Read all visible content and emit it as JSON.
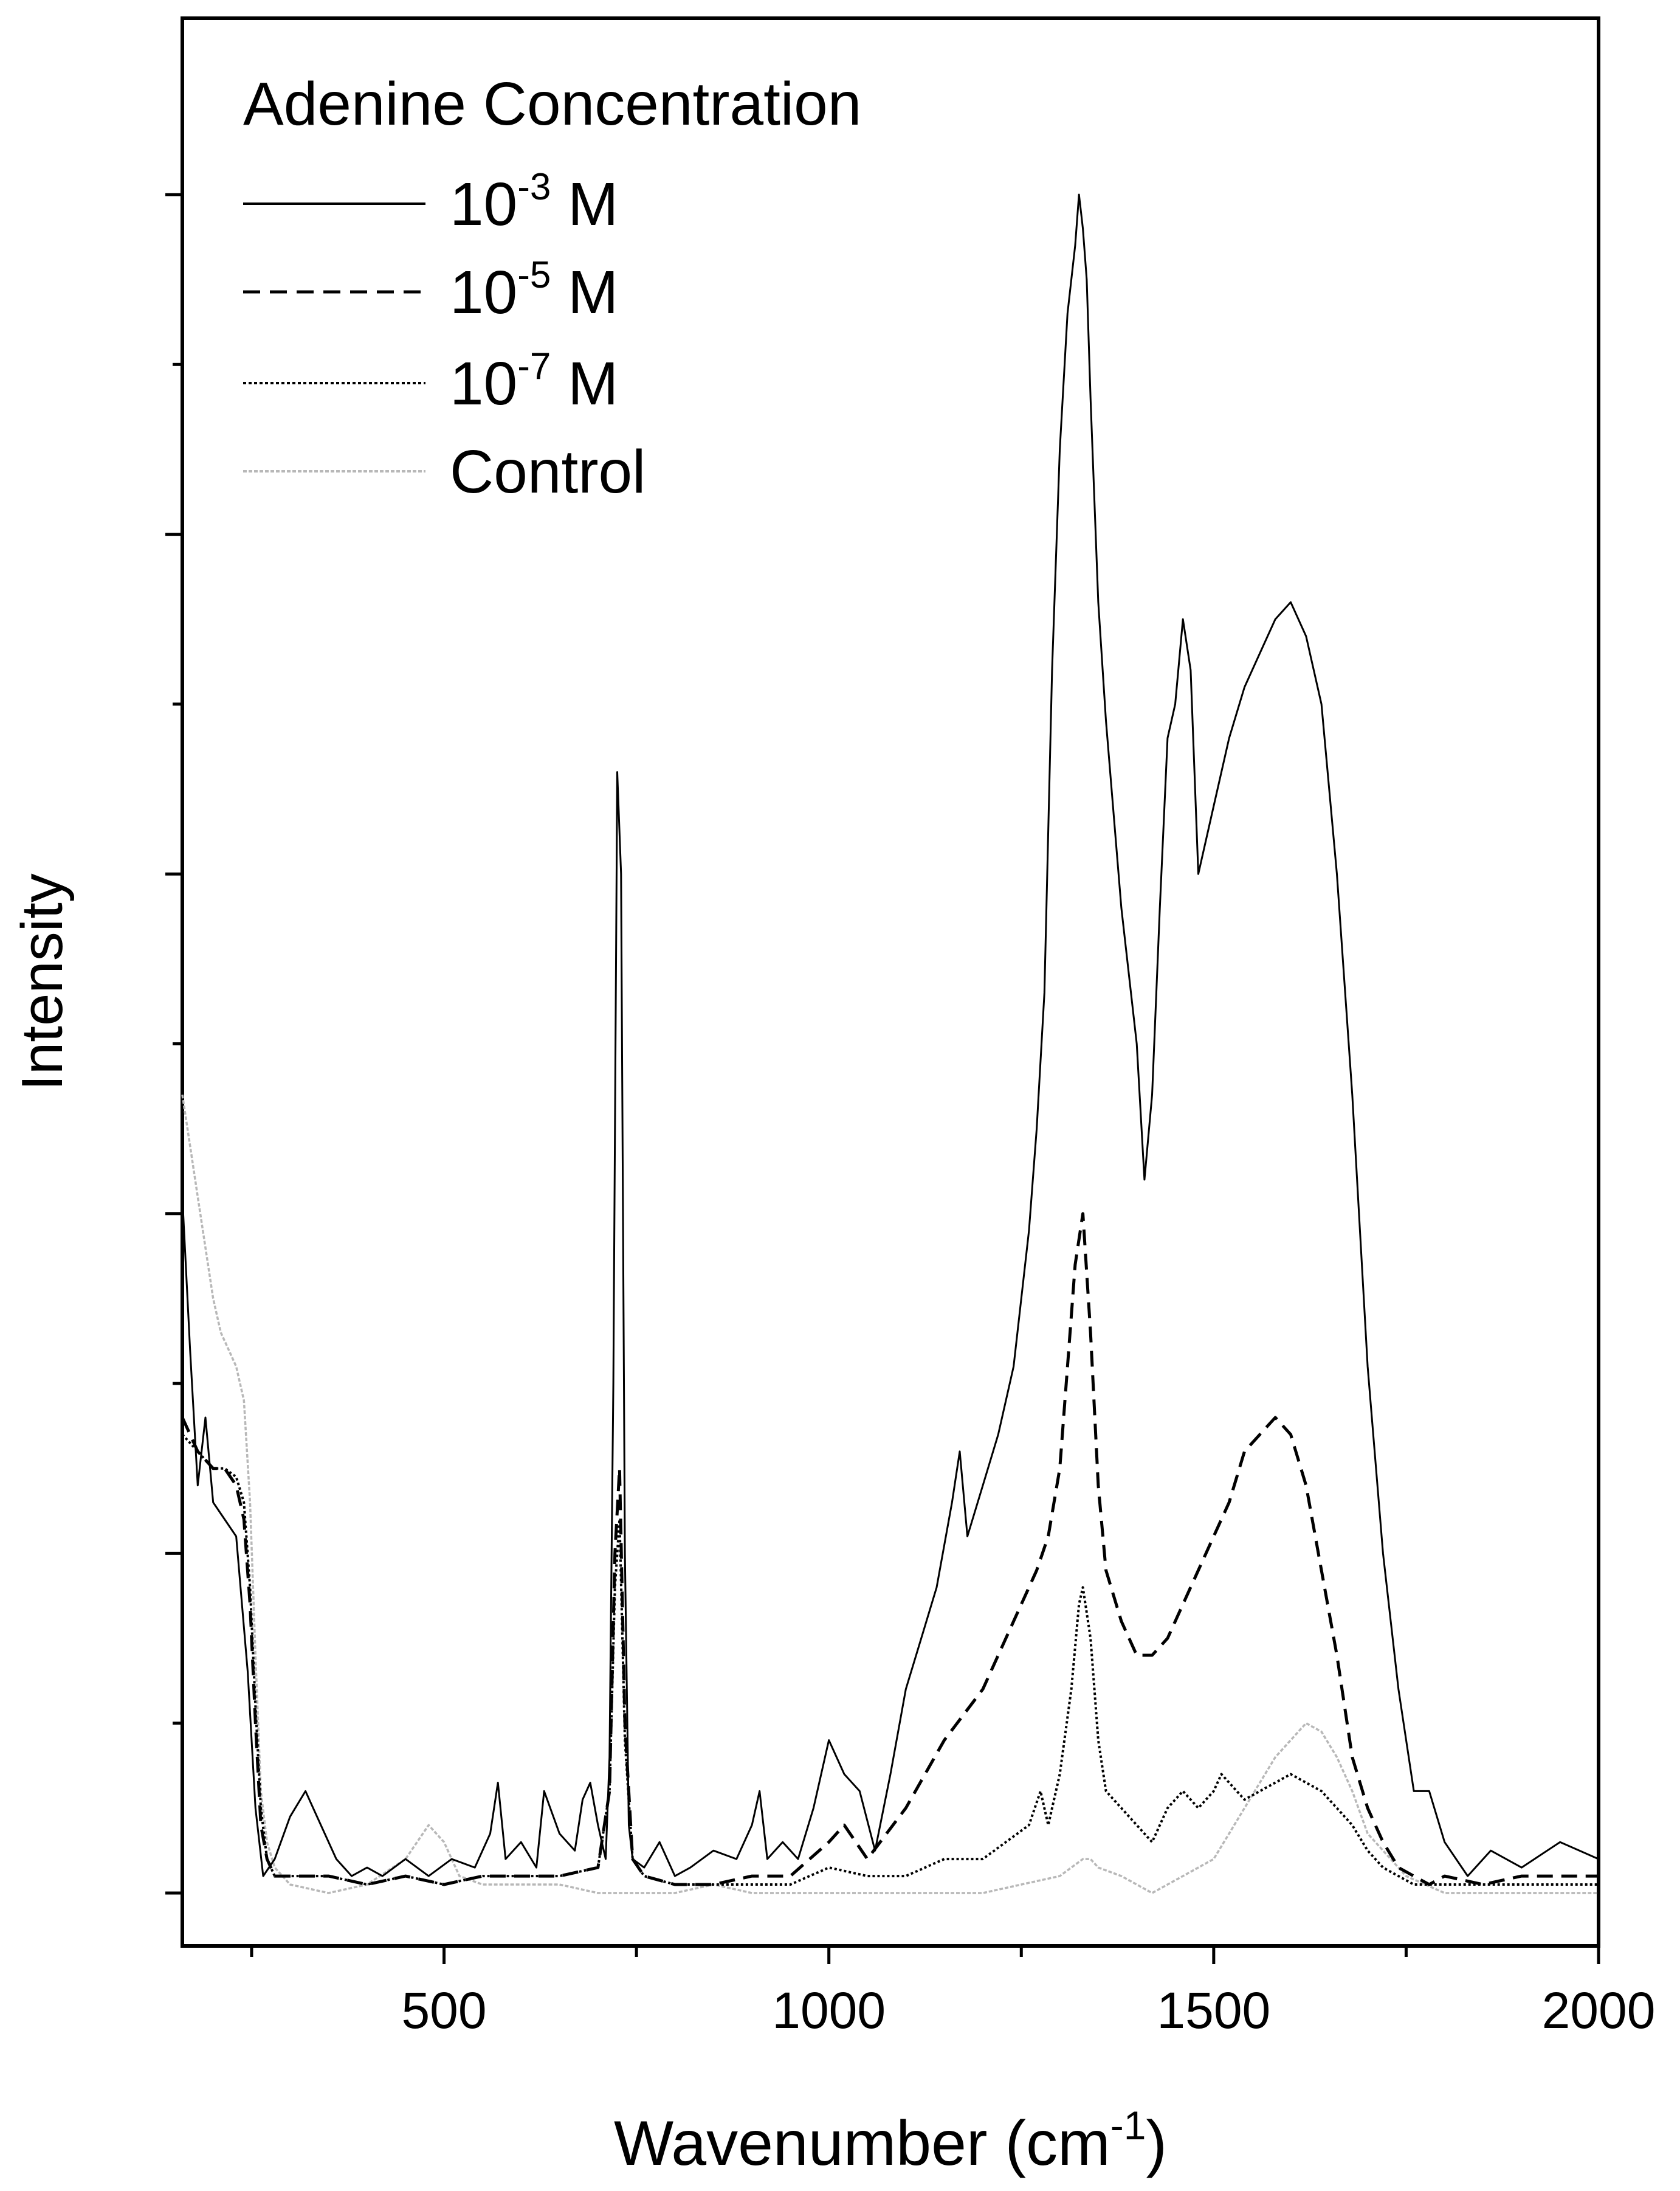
{
  "chart_data": {
    "type": "line",
    "title": "",
    "xlabel": "Wavenumber (cm",
    "xlabel_sup": "-1",
    "xlabel_close": ")",
    "ylabel": "Intensity",
    "xlim": [
      160,
      2000
    ],
    "ylim": [
      -0.08,
      1.0
    ],
    "xticks": [
      500,
      1000,
      1500,
      2000
    ],
    "xtick_labels": [
      "500",
      "1000",
      "1500",
      "2000"
    ],
    "yaxis_tick_labels_shown": false,
    "grid": false,
    "legend": {
      "title": "Adenine Concentration",
      "placement": "top-left",
      "entries": [
        {
          "base": "10",
          "exp": "-3",
          "unit": " M",
          "style": "solid"
        },
        {
          "base": "10",
          "exp": "-5",
          "unit": " M",
          "style": "dashed"
        },
        {
          "base": "10",
          "exp": "-7",
          "unit": " M",
          "style": "dotted"
        },
        {
          "base": "Control",
          "exp": "",
          "unit": "",
          "style": "control"
        }
      ]
    },
    "colors": {
      "ink": "#000000",
      "control": "#b8b8b8"
    },
    "series": [
      {
        "name": "10-3 M",
        "style": "solid",
        "x": [
          160,
          170,
          180,
          190,
          200,
          215,
          230,
          245,
          255,
          265,
          280,
          300,
          320,
          340,
          360,
          380,
          400,
          420,
          450,
          480,
          510,
          540,
          560,
          570,
          580,
          600,
          620,
          630,
          650,
          670,
          680,
          690,
          700,
          710,
          715,
          720,
          725,
          730,
          735,
          740,
          745,
          760,
          780,
          800,
          820,
          850,
          880,
          900,
          910,
          920,
          940,
          960,
          980,
          1000,
          1020,
          1040,
          1060,
          1080,
          1100,
          1120,
          1140,
          1160,
          1170,
          1180,
          1200,
          1220,
          1240,
          1260,
          1270,
          1280,
          1290,
          1300,
          1310,
          1320,
          1325,
          1330,
          1335,
          1340,
          1350,
          1360,
          1380,
          1400,
          1410,
          1420,
          1430,
          1440,
          1450,
          1460,
          1470,
          1480,
          1500,
          1520,
          1540,
          1560,
          1580,
          1600,
          1620,
          1640,
          1660,
          1680,
          1700,
          1720,
          1740,
          1760,
          1780,
          1800,
          1830,
          1860,
          1900,
          1950,
          2000
        ],
        "y": [
          0.41,
          0.32,
          0.24,
          0.28,
          0.23,
          0.22,
          0.21,
          0.13,
          0.05,
          0.01,
          0.02,
          0.045,
          0.06,
          0.04,
          0.02,
          0.01,
          0.015,
          0.01,
          0.02,
          0.01,
          0.02,
          0.015,
          0.035,
          0.065,
          0.02,
          0.03,
          0.015,
          0.06,
          0.035,
          0.025,
          0.055,
          0.065,
          0.04,
          0.02,
          0.08,
          0.3,
          0.66,
          0.6,
          0.2,
          0.04,
          0.02,
          0.015,
          0.03,
          0.01,
          0.015,
          0.025,
          0.02,
          0.04,
          0.06,
          0.02,
          0.03,
          0.02,
          0.05,
          0.09,
          0.07,
          0.06,
          0.025,
          0.07,
          0.12,
          0.15,
          0.18,
          0.23,
          0.26,
          0.21,
          0.24,
          0.27,
          0.31,
          0.39,
          0.45,
          0.53,
          0.72,
          0.85,
          0.93,
          0.97,
          1.0,
          0.98,
          0.95,
          0.88,
          0.76,
          0.69,
          0.58,
          0.5,
          0.42,
          0.47,
          0.58,
          0.68,
          0.7,
          0.75,
          0.72,
          0.6,
          0.64,
          0.68,
          0.71,
          0.73,
          0.75,
          0.76,
          0.74,
          0.7,
          0.6,
          0.47,
          0.31,
          0.2,
          0.12,
          0.06,
          0.06,
          0.03,
          0.01,
          0.025,
          0.015,
          0.03,
          0.02
        ]
      },
      {
        "name": "10-5 M",
        "style": "dashed",
        "x": [
          160,
          170,
          180,
          190,
          200,
          215,
          230,
          240,
          248,
          255,
          262,
          270,
          280,
          300,
          350,
          400,
          450,
          500,
          550,
          600,
          650,
          700,
          715,
          722,
          728,
          735,
          745,
          760,
          800,
          850,
          900,
          950,
          1000,
          1020,
          1050,
          1100,
          1150,
          1200,
          1230,
          1250,
          1270,
          1285,
          1300,
          1310,
          1320,
          1330,
          1340,
          1350,
          1360,
          1380,
          1400,
          1420,
          1440,
          1460,
          1480,
          1500,
          1520,
          1540,
          1560,
          1580,
          1600,
          1620,
          1640,
          1660,
          1680,
          1700,
          1720,
          1740,
          1760,
          1780,
          1800,
          1850,
          1900,
          2000
        ],
        "y": [
          0.28,
          0.27,
          0.26,
          0.255,
          0.25,
          0.25,
          0.24,
          0.22,
          0.17,
          0.1,
          0.04,
          0.02,
          0.01,
          0.01,
          0.01,
          0.005,
          0.01,
          0.005,
          0.01,
          0.01,
          0.01,
          0.015,
          0.06,
          0.2,
          0.25,
          0.1,
          0.02,
          0.01,
          0.005,
          0.005,
          0.01,
          0.01,
          0.03,
          0.04,
          0.02,
          0.05,
          0.09,
          0.12,
          0.15,
          0.17,
          0.19,
          0.21,
          0.25,
          0.31,
          0.37,
          0.4,
          0.33,
          0.24,
          0.19,
          0.16,
          0.14,
          0.14,
          0.15,
          0.17,
          0.19,
          0.21,
          0.23,
          0.26,
          0.27,
          0.28,
          0.27,
          0.24,
          0.19,
          0.14,
          0.08,
          0.05,
          0.03,
          0.015,
          0.01,
          0.005,
          0.01,
          0.005,
          0.01,
          0.01
        ]
      },
      {
        "name": "10-7 M",
        "style": "dotted",
        "x": [
          160,
          170,
          180,
          190,
          200,
          215,
          230,
          240,
          248,
          255,
          262,
          270,
          280,
          300,
          350,
          400,
          450,
          500,
          550,
          600,
          650,
          700,
          715,
          722,
          728,
          735,
          745,
          760,
          800,
          850,
          900,
          950,
          1000,
          1050,
          1100,
          1150,
          1200,
          1230,
          1260,
          1275,
          1285,
          1300,
          1315,
          1325,
          1330,
          1340,
          1350,
          1360,
          1380,
          1400,
          1420,
          1440,
          1460,
          1480,
          1500,
          1510,
          1520,
          1540,
          1560,
          1580,
          1600,
          1620,
          1640,
          1660,
          1680,
          1700,
          1720,
          1740,
          1760,
          1800,
          1850,
          1900,
          2000
        ],
        "y": [
          0.27,
          0.265,
          0.26,
          0.255,
          0.25,
          0.25,
          0.245,
          0.23,
          0.18,
          0.11,
          0.05,
          0.02,
          0.01,
          0.01,
          0.01,
          0.005,
          0.01,
          0.005,
          0.01,
          0.01,
          0.01,
          0.015,
          0.06,
          0.18,
          0.22,
          0.09,
          0.02,
          0.01,
          0.005,
          0.005,
          0.005,
          0.005,
          0.015,
          0.01,
          0.01,
          0.02,
          0.02,
          0.03,
          0.04,
          0.06,
          0.04,
          0.07,
          0.12,
          0.17,
          0.18,
          0.15,
          0.09,
          0.06,
          0.05,
          0.04,
          0.03,
          0.05,
          0.06,
          0.05,
          0.06,
          0.07,
          0.065,
          0.055,
          0.06,
          0.065,
          0.07,
          0.065,
          0.06,
          0.05,
          0.04,
          0.025,
          0.015,
          0.01,
          0.005,
          0.005,
          0.005,
          0.005,
          0.005
        ]
      },
      {
        "name": "Control",
        "style": "control",
        "x": [
          160,
          170,
          180,
          190,
          200,
          210,
          220,
          230,
          240,
          248,
          255,
          262,
          270,
          280,
          300,
          350,
          400,
          450,
          480,
          500,
          520,
          550,
          600,
          650,
          700,
          750,
          800,
          850,
          900,
          950,
          1000,
          1050,
          1100,
          1150,
          1200,
          1250,
          1300,
          1330,
          1340,
          1350,
          1380,
          1400,
          1420,
          1440,
          1460,
          1480,
          1500,
          1520,
          1540,
          1560,
          1580,
          1600,
          1620,
          1640,
          1660,
          1680,
          1700,
          1750,
          1800,
          1850,
          1900,
          2000
        ],
        "y": [
          0.47,
          0.44,
          0.41,
          0.38,
          0.35,
          0.33,
          0.32,
          0.31,
          0.29,
          0.23,
          0.14,
          0.06,
          0.03,
          0.015,
          0.005,
          0.0,
          0.005,
          0.02,
          0.04,
          0.03,
          0.01,
          0.005,
          0.005,
          0.005,
          0.0,
          0.0,
          0.0,
          0.005,
          0.0,
          0.0,
          0.0,
          0.0,
          0.0,
          0.0,
          0.0,
          0.005,
          0.01,
          0.02,
          0.02,
          0.015,
          0.01,
          0.005,
          0.0,
          0.005,
          0.01,
          0.015,
          0.02,
          0.035,
          0.05,
          0.065,
          0.08,
          0.09,
          0.1,
          0.095,
          0.08,
          0.06,
          0.035,
          0.01,
          0.0,
          0.0,
          0.0,
          0.0
        ]
      }
    ]
  }
}
